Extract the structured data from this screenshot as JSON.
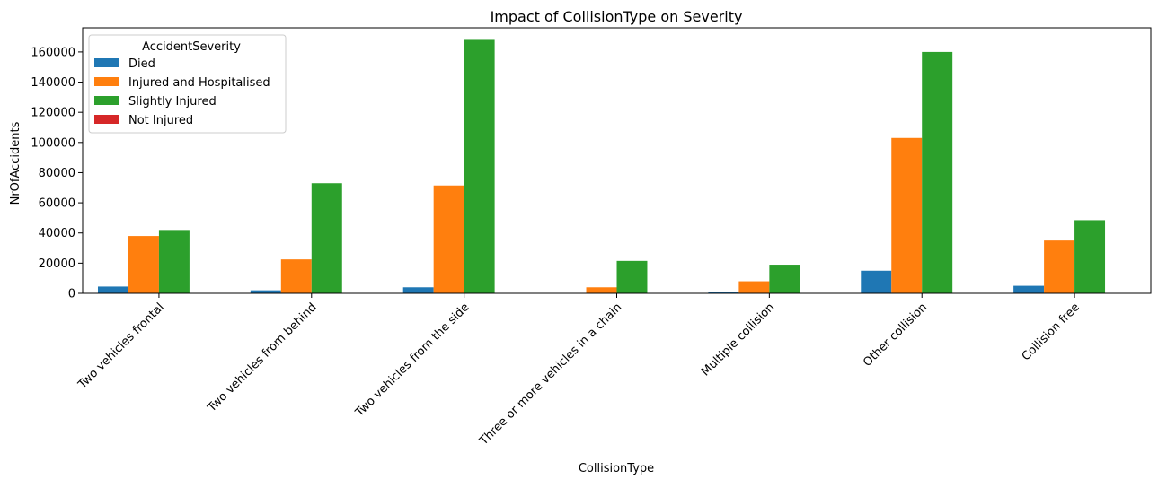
{
  "chart_data": {
    "type": "bar",
    "title": "Impact of CollisionType on Severity",
    "xlabel": "CollisionType",
    "ylabel": "NrOfAccidents",
    "ylim": [
      0,
      176000
    ],
    "yticks": [
      0,
      20000,
      40000,
      60000,
      80000,
      100000,
      120000,
      140000,
      160000
    ],
    "yticks_text": [
      "0",
      "20000",
      "40000",
      "60000",
      "80000",
      "100000",
      "120000",
      "140000",
      "160000"
    ],
    "categories": [
      "Two vehicles frontal",
      "Two vehicles from behind",
      "Two vehicles from the side",
      "Three or more vehicles in a chain",
      "Multiple collision",
      "Other collision",
      "Collision free"
    ],
    "legend_title": "AccidentSeverity",
    "legend_position": "top-left",
    "series": [
      {
        "name": "Died",
        "color": "#1f77b4",
        "values": [
          4500,
          2000,
          4000,
          300,
          1000,
          15000,
          5000
        ]
      },
      {
        "name": "Injured and Hospitalised",
        "color": "#ff7f0e",
        "values": [
          38000,
          22500,
          71500,
          4000,
          8000,
          103000,
          35000
        ]
      },
      {
        "name": "Slightly Injured",
        "color": "#2ca02c",
        "values": [
          42000,
          73000,
          168000,
          21500,
          19000,
          160000,
          48500
        ]
      },
      {
        "name": "Not Injured",
        "color": "#d62728",
        "values": [
          0,
          0,
          0,
          0,
          0,
          0,
          0
        ]
      }
    ]
  }
}
